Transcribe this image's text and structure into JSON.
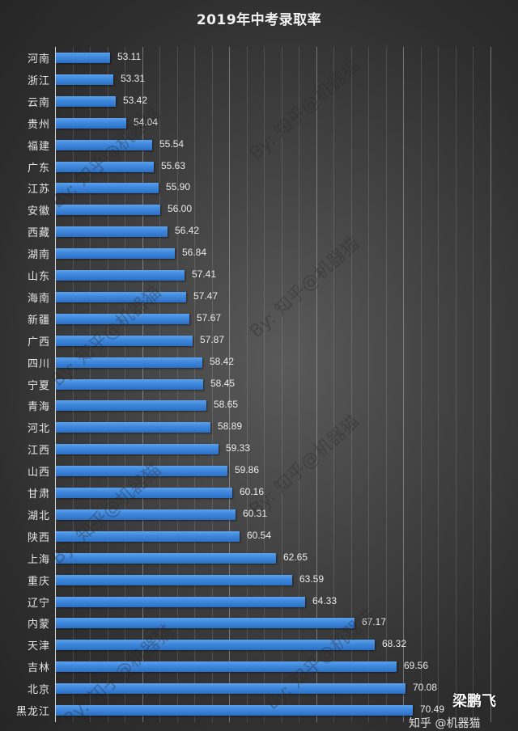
{
  "title": "2019年中考录取率",
  "chart_data": {
    "type": "bar",
    "orientation": "horizontal",
    "title": "2019年中考录取率",
    "xlabel": "",
    "ylabel": "",
    "xlim": [
      50,
      75
    ],
    "grid": true,
    "major_tick_interval": 5,
    "minor_tick_interval": 1,
    "tick_labels_visible": false,
    "legend": null,
    "bar_color": "#3f87db",
    "categories": [
      "河南",
      "浙江",
      "云南",
      "贵州",
      "福建",
      "广东",
      "江苏",
      "安徽",
      "西藏",
      "湖南",
      "山东",
      "海南",
      "新疆",
      "广西",
      "四川",
      "宁夏",
      "青海",
      "河北",
      "江西",
      "山西",
      "甘肃",
      "湖北",
      "陕西",
      "上海",
      "重庆",
      "辽宁",
      "内蒙",
      "天津",
      "吉林",
      "北京",
      "黑龙江"
    ],
    "values": [
      53.11,
      53.31,
      53.42,
      54.04,
      55.54,
      55.63,
      55.9,
      56.0,
      56.42,
      56.84,
      57.41,
      57.47,
      57.67,
      57.87,
      58.42,
      58.45,
      58.65,
      58.89,
      59.33,
      59.86,
      60.16,
      60.31,
      60.54,
      62.65,
      63.59,
      64.33,
      67.17,
      68.32,
      69.56,
      70.08,
      70.49
    ],
    "value_labels": [
      "53.11",
      "53.31",
      "53.42",
      "54.04",
      "55.54",
      "55.63",
      "55.90",
      "56.00",
      "56.42",
      "56.84",
      "57.41",
      "57.47",
      "57.67",
      "57.87",
      "58.42",
      "58.45",
      "58.65",
      "58.89",
      "59.33",
      "59.86",
      "60.16",
      "60.31",
      "60.54",
      "62.65",
      "63.59",
      "64.33",
      "67.17",
      "68.32",
      "69.56",
      "70.08",
      "70.49"
    ]
  },
  "watermark": "By: 知乎@机器猫",
  "signature": "梁鹏飞",
  "footer_partial": "知乎 @机器猫"
}
